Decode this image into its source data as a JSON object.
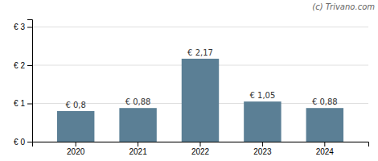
{
  "chart_data": {
    "type": "bar",
    "categories": [
      "2020",
      "2021",
      "2022",
      "2023",
      "2024"
    ],
    "values": [
      0.8,
      0.88,
      2.17,
      1.05,
      0.88
    ],
    "value_labels": [
      "€ 0,8",
      "€ 0,88",
      "€ 2,17",
      "€ 1,05",
      "€ 0,88"
    ],
    "color": "#5b7f95",
    "ylim": [
      0,
      3.2
    ],
    "yticks": [
      {
        "value": 0.0,
        "label": "€ 0"
      },
      {
        "value": 1.0,
        "label": "€ 1"
      },
      {
        "value": 2.0,
        "label": "€ 2"
      },
      {
        "value": 3.0,
        "label": "€ 3"
      }
    ],
    "grid": true,
    "annotations": [
      "(c) Trivano.com"
    ]
  }
}
